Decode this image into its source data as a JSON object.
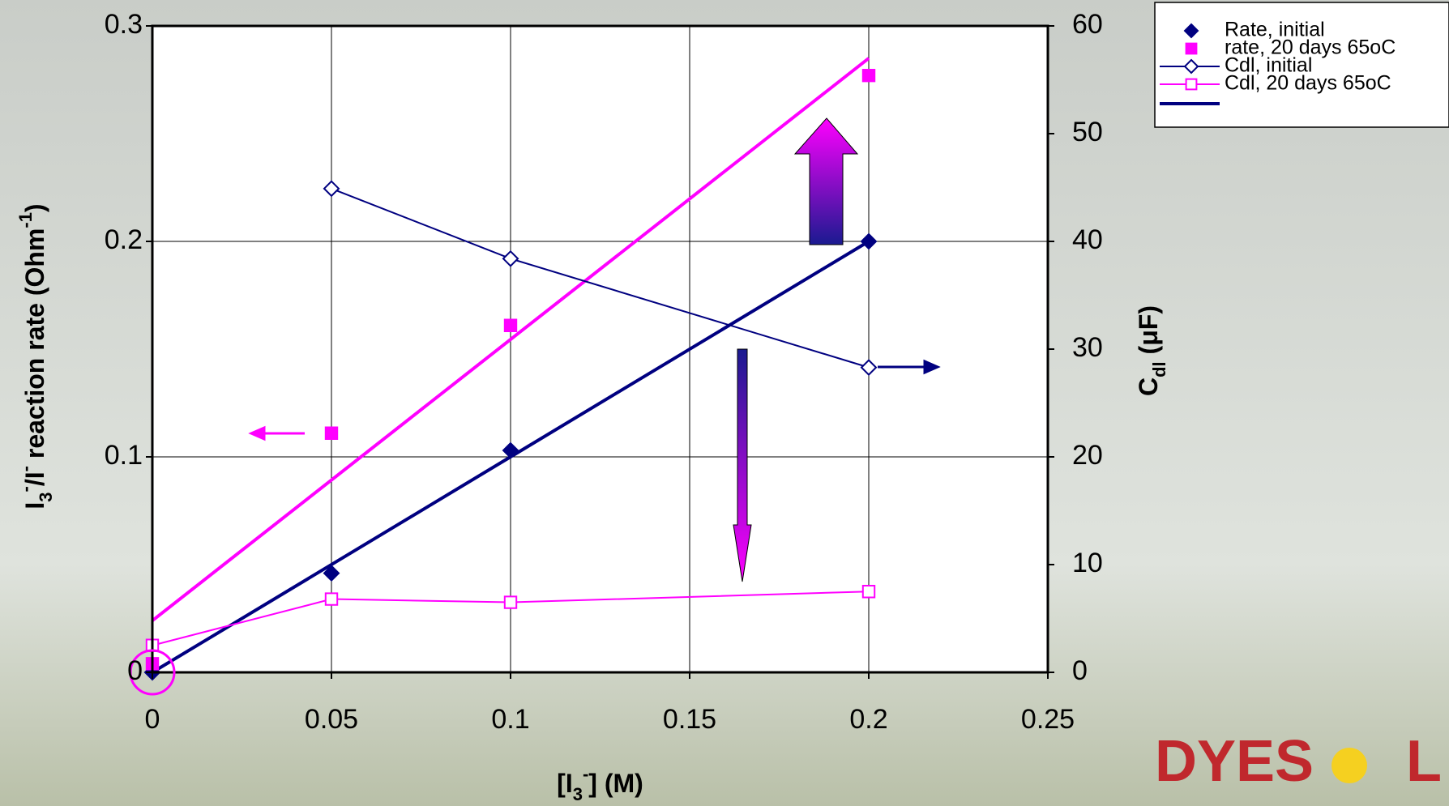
{
  "chart_data": {
    "type": "line",
    "x_label": [
      "[I",
      "3",
      "-",
      "] (M)"
    ],
    "x_label_style": [
      "base",
      "sub",
      "sup",
      "base"
    ],
    "y_label": [
      "I",
      "3",
      "-",
      "/I",
      "-",
      " reaction rate (Ohm",
      "-1",
      ")"
    ],
    "y_label_style": [
      "base",
      "sub",
      "sup",
      "base",
      "sup",
      "base",
      "sup",
      "base"
    ],
    "y2_label": [
      "C",
      "dl",
      " (μF)"
    ],
    "y2_label_style": [
      "base",
      "sub",
      "base"
    ],
    "xlim": [
      0,
      0.25
    ],
    "xticks": [
      0,
      0.05,
      0.1,
      0.15,
      0.2,
      0.25
    ],
    "ylim": [
      0,
      0.3
    ],
    "yticks": [
      0,
      0.1,
      0.2,
      0.3
    ],
    "y2lim": [
      0,
      60
    ],
    "y2ticks": [
      0,
      10,
      20,
      30,
      40,
      50,
      60
    ],
    "grid": true,
    "legend": "top-right",
    "x": [
      0,
      0.05,
      0.1,
      0.2
    ],
    "series": [
      {
        "name": "Rate, initial",
        "color": "#000080",
        "marker": "diamond",
        "filled": true,
        "line": false,
        "values": [
          0,
          0.046,
          0.103,
          0.2
        ]
      },
      {
        "name": "rate, 20 days 65oC",
        "color": "#ff00ff",
        "marker": "square",
        "filled": true,
        "line": false,
        "values": [
          0.004,
          0.111,
          0.161,
          0.277
        ]
      },
      {
        "name": "Cdl, initial",
        "color": "#000080",
        "marker": "diamond",
        "filled": false,
        "line": true,
        "axis": "y2",
        "values": [
          null,
          44.9,
          38.4,
          28.3
        ]
      },
      {
        "name": "Cdl, 20 days 65oC",
        "color": "#ff00ff",
        "marker": "square",
        "filled": false,
        "line": true,
        "axis": "y2",
        "values": [
          2.5,
          6.8,
          6.5,
          7.5
        ]
      }
    ],
    "trendlines": [
      {
        "color": "#ff00ff",
        "x": [
          0,
          0.2
        ],
        "values": [
          0.024,
          0.285
        ]
      },
      {
        "color": "#000080",
        "x": [
          0,
          0.2
        ],
        "values": [
          0,
          0.2
        ]
      }
    ],
    "logo": [
      "DYES",
      "L"
    ]
  }
}
